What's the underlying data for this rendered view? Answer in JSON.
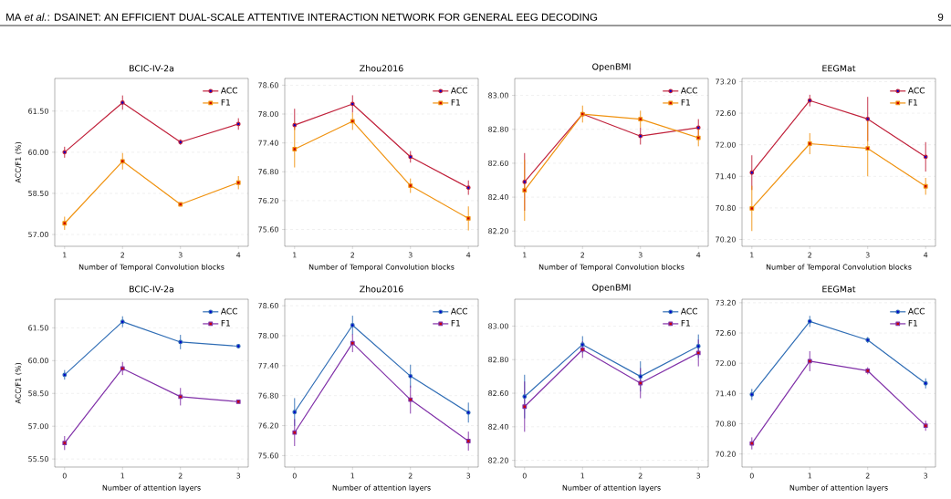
{
  "chart_data": [
    {
      "type": "line",
      "title": "BCIC-IV-2a",
      "xlabel": "Number of Temporal Convolution blocks",
      "ylabel": "ACC/F1 (%)",
      "annotations": [
        "MA *et al.*: DSAINET: AN EFFICIENT DUAL-SCALE ATTENTIVE INTERACTION NETWORK FOR GENERAL EEG DECODING",
        "9"
      ],
      "x": [
        1,
        2,
        3,
        4
      ],
      "xlim": [
        0.83,
        4.17
      ],
      "xticks": [
        1,
        2,
        3,
        4
      ],
      "ylim": [
        56.57,
        62.69
      ],
      "yticks": [
        {
          "value": 57,
          "label": "57.00"
        },
        {
          "value": 58.5,
          "label": "58.50"
        },
        {
          "value": 60,
          "label": "60.00"
        },
        {
          "value": 61.5,
          "label": "61.50"
        }
      ],
      "grid": "y",
      "legend": "top right",
      "series": [
        {
          "name": "ACC",
          "color": "#c0203a",
          "marker": "circle",
          "values": [
            60.0,
            61.81,
            60.37,
            61.03
          ],
          "errors": [
            0.2,
            0.26,
            0.1,
            0.21
          ]
        },
        {
          "name": "F1",
          "color": "#f0920f",
          "marker": "square",
          "values": [
            57.41,
            59.67,
            58.1,
            58.89
          ],
          "errors": [
            0.24,
            0.3,
            0.05,
            0.24
          ]
        }
      ]
    },
    {
      "type": "line",
      "title": "Zhou2016",
      "xlabel": "Number of Temporal Convolution blocks",
      "x": [
        1,
        2,
        3,
        4
      ],
      "xlim": [
        0.83,
        4.17
      ],
      "xticks": [
        1,
        2,
        3,
        4
      ],
      "ylim": [
        75.25,
        78.74
      ],
      "yticks": [
        {
          "value": 75.6,
          "label": "75.60"
        },
        {
          "value": 76.2,
          "label": "76.20"
        },
        {
          "value": 76.8,
          "label": "76.80"
        },
        {
          "value": 77.4,
          "label": "77.40"
        },
        {
          "value": 78.0,
          "label": "78.00"
        },
        {
          "value": 78.6,
          "label": "78.60"
        }
      ],
      "grid": "y",
      "legend": "top right",
      "series": [
        {
          "name": "ACC",
          "color": "#c0203a",
          "marker": "circle",
          "values": [
            77.77,
            78.21,
            77.11,
            76.47
          ],
          "errors": [
            [
              77.67,
              78.11
            ],
            0.18,
            0.12,
            0.15
          ]
        },
        {
          "name": "F1",
          "color": "#f0920f",
          "marker": "square",
          "values": [
            77.27,
            77.85,
            76.51,
            75.83
          ],
          "errors": [
            [
              76.89,
              77.84
            ],
            0.18,
            0.15,
            0.25
          ]
        }
      ]
    },
    {
      "type": "line",
      "title": "OpenBMI",
      "xlabel": "Number of Temporal Convolution blocks",
      "x": [
        1,
        2,
        3,
        4
      ],
      "xlim": [
        0.83,
        4.17
      ],
      "xticks": [
        1,
        2,
        3,
        4
      ],
      "ylim": [
        82.11,
        83.1
      ],
      "yticks": [
        {
          "value": 82.2,
          "label": "82.20"
        },
        {
          "value": 82.4,
          "label": "82.40"
        },
        {
          "value": 82.6,
          "label": "82.60"
        },
        {
          "value": 82.8,
          "label": "82.80"
        },
        {
          "value": 83.0,
          "label": "83.00"
        }
      ],
      "grid": "y",
      "legend": "top right",
      "series": [
        {
          "name": "ACC",
          "color": "#c0203a",
          "marker": "circle",
          "values": [
            82.49,
            82.89,
            82.76,
            82.81
          ],
          "errors": [
            0.17,
            null,
            0.05,
            0.05
          ]
        },
        {
          "name": "F1",
          "color": "#f0920f",
          "marker": "square",
          "values": [
            82.44,
            82.89,
            82.86,
            82.75
          ],
          "errors": [
            0.18,
            0.05,
            0.05,
            0.05
          ]
        }
      ]
    },
    {
      "type": "line",
      "title": "EEGMat",
      "xlabel": "Number of Temporal Convolution blocks",
      "x": [
        1,
        2,
        3,
        4
      ],
      "xlim": [
        0.83,
        4.17
      ],
      "xticks": [
        1,
        2,
        3,
        4
      ],
      "ylim": [
        70.07,
        73.26
      ],
      "yticks": [
        {
          "value": 70.2,
          "label": "70.20"
        },
        {
          "value": 70.8,
          "label": "70.80"
        },
        {
          "value": 71.4,
          "label": "71.40"
        },
        {
          "value": 72.0,
          "label": "72.00"
        },
        {
          "value": 72.6,
          "label": "72.60"
        },
        {
          "value": 73.2,
          "label": "73.20"
        }
      ],
      "grid": "y",
      "legend": "top right",
      "series": [
        {
          "name": "ACC",
          "color": "#c0203a",
          "marker": "circle",
          "values": [
            71.47,
            72.84,
            72.49,
            71.77
          ],
          "errors": [
            0.33,
            0.11,
            0.42,
            0.28
          ]
        },
        {
          "name": "F1",
          "color": "#f0920f",
          "marker": "square",
          "values": [
            70.79,
            72.02,
            71.93,
            71.21
          ],
          "errors": [
            0.43,
            0.2,
            0.53,
            0.16
          ]
        }
      ]
    },
    {
      "type": "line",
      "title": "BCIC-IV-2a",
      "xlabel": "Number of attention layers",
      "ylabel": "ACC/F1 (%)",
      "x": [
        0,
        1,
        2,
        3
      ],
      "xlim": [
        -0.17,
        3.17
      ],
      "xticks": [
        0,
        1,
        2,
        3
      ],
      "ylim": [
        55.13,
        62.81
      ],
      "yticks": [
        {
          "value": 55.5,
          "label": "55.50"
        },
        {
          "value": 57,
          "label": "57.00"
        },
        {
          "value": 58.5,
          "label": "58.50"
        },
        {
          "value": 60,
          "label": "60.00"
        },
        {
          "value": 61.5,
          "label": "61.50"
        }
      ],
      "grid": "y",
      "legend": "top right",
      "series": [
        {
          "name": "ACC",
          "color": "#2f6db5",
          "marker": "circle",
          "values": [
            59.35,
            61.78,
            60.85,
            60.66
          ],
          "errors": [
            0.22,
            0.25,
            0.33,
            null
          ]
        },
        {
          "name": "F1",
          "color": "#8030a8",
          "marker": "square",
          "values": [
            56.23,
            59.64,
            58.35,
            58.12
          ],
          "errors": [
            0.32,
            0.3,
            0.4,
            null
          ]
        }
      ]
    },
    {
      "type": "line",
      "title": "Zhou2016",
      "xlabel": "Number of attention layers",
      "x": [
        0,
        1,
        2,
        3
      ],
      "xlim": [
        -0.17,
        3.17
      ],
      "xticks": [
        0,
        1,
        2,
        3
      ],
      "ylim": [
        75.37,
        78.73
      ],
      "yticks": [
        {
          "value": 75.6,
          "label": "75.60"
        },
        {
          "value": 76.2,
          "label": "76.20"
        },
        {
          "value": 76.8,
          "label": "76.80"
        },
        {
          "value": 77.4,
          "label": "77.40"
        },
        {
          "value": 78.0,
          "label": "78.00"
        },
        {
          "value": 78.6,
          "label": "78.60"
        }
      ],
      "grid": "y",
      "legend": "top right",
      "series": [
        {
          "name": "ACC",
          "color": "#2f6db5",
          "marker": "circle",
          "values": [
            76.47,
            78.21,
            77.19,
            76.46
          ],
          "errors": [
            0.28,
            0.19,
            0.23,
            0.2
          ]
        },
        {
          "name": "F1",
          "color": "#8030a8",
          "marker": "square",
          "values": [
            76.06,
            77.85,
            76.72,
            75.89
          ],
          "errors": [
            0.27,
            0.18,
            0.28,
            0.19
          ]
        }
      ]
    },
    {
      "type": "line",
      "title": "OpenBMI",
      "xlabel": "Number of attention layers",
      "x": [
        0,
        1,
        2,
        3
      ],
      "xlim": [
        -0.17,
        3.17
      ],
      "xticks": [
        0,
        1,
        2,
        3
      ],
      "ylim": [
        82.16,
        83.16
      ],
      "yticks": [
        {
          "value": 82.2,
          "label": "82.20"
        },
        {
          "value": 82.4,
          "label": "82.40"
        },
        {
          "value": 82.6,
          "label": "82.60"
        },
        {
          "value": 82.8,
          "label": "82.80"
        },
        {
          "value": 83.0,
          "label": "83.00"
        }
      ],
      "grid": "y",
      "legend": "top right",
      "series": [
        {
          "name": "ACC",
          "color": "#2f6db5",
          "marker": "circle",
          "values": [
            82.58,
            82.89,
            82.7,
            82.88
          ],
          "errors": [
            0.13,
            0.05,
            0.09,
            0.07
          ]
        },
        {
          "name": "F1",
          "color": "#8030a8",
          "marker": "square",
          "values": [
            82.52,
            82.86,
            82.66,
            82.84
          ],
          "errors": [
            0.15,
            0.05,
            0.09,
            0.08
          ]
        }
      ]
    },
    {
      "type": "line",
      "title": "EEGMat",
      "xlabel": "Number of attention layers",
      "x": [
        0,
        1,
        2,
        3
      ],
      "xlim": [
        -0.17,
        3.17
      ],
      "xticks": [
        0,
        1,
        2,
        3
      ],
      "ylim": [
        69.94,
        73.27
      ],
      "yticks": [
        {
          "value": 70.2,
          "label": "70.20"
        },
        {
          "value": 70.8,
          "label": "70.80"
        },
        {
          "value": 71.4,
          "label": "71.40"
        },
        {
          "value": 72.0,
          "label": "72.00"
        },
        {
          "value": 72.6,
          "label": "72.60"
        },
        {
          "value": 73.2,
          "label": "73.20"
        }
      ],
      "grid": "y",
      "legend": "top right",
      "series": [
        {
          "name": "ACC",
          "color": "#2f6db5",
          "marker": "circle",
          "values": [
            71.38,
            72.83,
            72.46,
            71.6
          ],
          "errors": [
            0.11,
            0.11,
            0.06,
            0.1
          ]
        },
        {
          "name": "F1",
          "color": "#8030a8",
          "marker": "square",
          "values": [
            70.41,
            72.04,
            71.85,
            70.76
          ],
          "errors": [
            0.12,
            0.2,
            0.07,
            0.1
          ]
        }
      ]
    }
  ]
}
